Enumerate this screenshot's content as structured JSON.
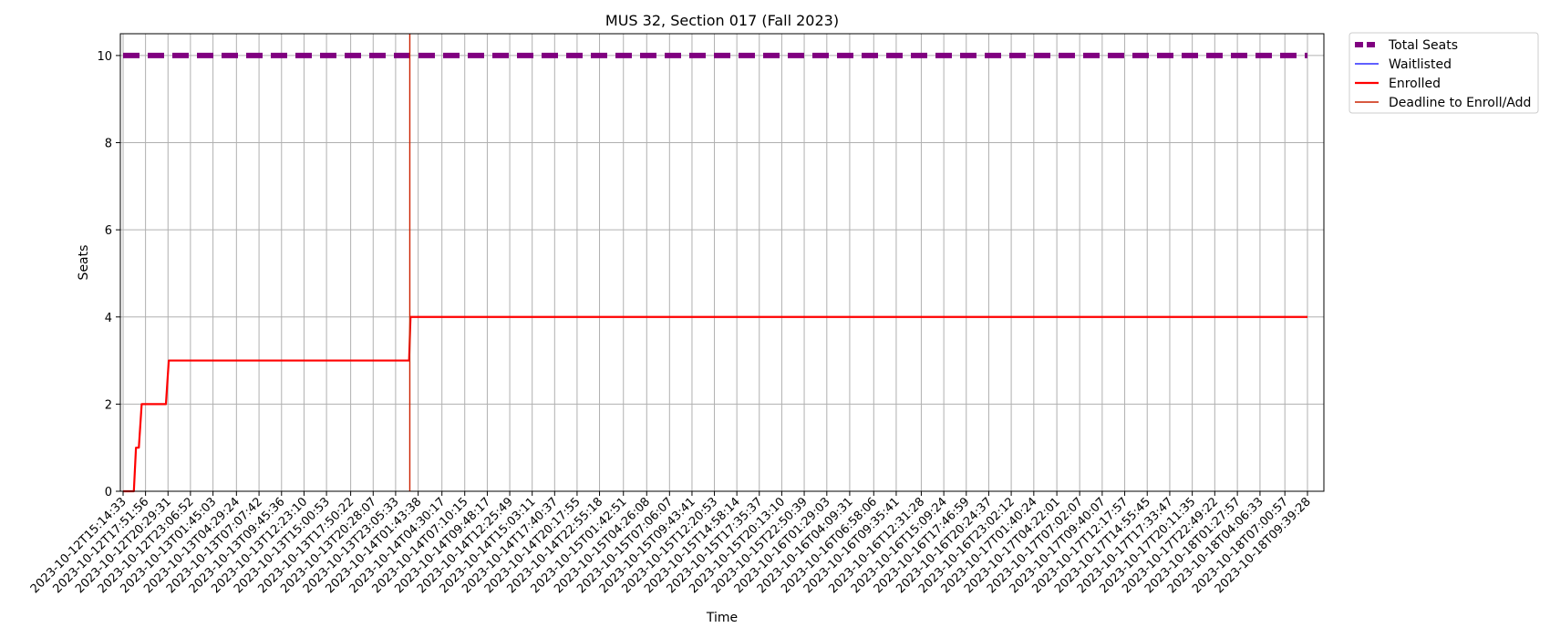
{
  "chart_data": {
    "type": "line",
    "title": "MUS 32, Section 017 (Fall 2023)",
    "xlabel": "Time",
    "ylabel": "Seats",
    "ylim": [
      0,
      10.5
    ],
    "yticks": [
      0,
      2,
      4,
      6,
      8,
      10
    ],
    "grid": true,
    "legend_position": "outside-top-right",
    "x_categories": [
      "2023-10-12T15:14:33",
      "2023-10-12T17:51:56",
      "2023-10-12T20:29:31",
      "2023-10-12T23:06:52",
      "2023-10-13T01:45:03",
      "2023-10-13T04:29:24",
      "2023-10-13T07:07:42",
      "2023-10-13T09:45:36",
      "2023-10-13T12:23:10",
      "2023-10-13T15:00:53",
      "2023-10-13T17:50:22",
      "2023-10-13T20:28:07",
      "2023-10-13T23:05:33",
      "2023-10-14T01:43:38",
      "2023-10-14T04:30:17",
      "2023-10-14T07:10:15",
      "2023-10-14T09:48:17",
      "2023-10-14T12:25:49",
      "2023-10-14T15:03:11",
      "2023-10-14T17:40:37",
      "2023-10-14T20:17:55",
      "2023-10-14T22:55:18",
      "2023-10-15T01:42:51",
      "2023-10-15T04:26:08",
      "2023-10-15T07:06:07",
      "2023-10-15T09:43:41",
      "2023-10-15T12:20:53",
      "2023-10-15T14:58:14",
      "2023-10-15T17:35:37",
      "2023-10-15T20:13:10",
      "2023-10-15T22:50:39",
      "2023-10-16T01:29:03",
      "2023-10-16T04:09:31",
      "2023-10-16T06:58:06",
      "2023-10-16T09:35:41",
      "2023-10-16T12:31:28",
      "2023-10-16T15:09:24",
      "2023-10-16T17:46:59",
      "2023-10-16T20:24:37",
      "2023-10-16T23:02:12",
      "2023-10-17T01:40:24",
      "2023-10-17T04:22:01",
      "2023-10-17T07:02:07",
      "2023-10-17T09:40:07",
      "2023-10-17T12:17:57",
      "2023-10-17T14:55:45",
      "2023-10-17T17:33:47",
      "2023-10-17T20:11:35",
      "2023-10-17T22:49:22",
      "2023-10-18T01:27:57",
      "2023-10-18T04:06:33",
      "2023-10-18T07:00:57",
      "2023-10-18T09:39:28"
    ],
    "series": [
      {
        "name": "Total Seats",
        "color": "#800080",
        "style": "dashed",
        "points": [
          [
            "2023-10-12T15:14:33",
            10
          ],
          [
            "2023-10-18T09:39:28",
            10
          ]
        ]
      },
      {
        "name": "Waitlisted",
        "color": "#0000ff",
        "style": "solid",
        "points": [
          [
            "2023-10-12T15:14:33",
            0
          ],
          [
            "2023-10-12T16:30:00",
            0
          ]
        ]
      },
      {
        "name": "Enrolled",
        "color": "#ff0000",
        "style": "solid",
        "points": [
          [
            "2023-10-12T15:14:33",
            0
          ],
          [
            "2023-10-12T16:30:00",
            0
          ],
          [
            "2023-10-12T16:45:00",
            1
          ],
          [
            "2023-10-12T17:05:00",
            1
          ],
          [
            "2023-10-12T17:25:00",
            2
          ],
          [
            "2023-10-12T20:15:00",
            2
          ],
          [
            "2023-10-12T20:35:00",
            3
          ],
          [
            "2023-10-14T00:40:00",
            3
          ],
          [
            "2023-10-14T00:50:00",
            4
          ],
          [
            "2023-10-18T09:39:28",
            4
          ]
        ]
      }
    ],
    "deadline": {
      "name": "Deadline to Enroll/Add",
      "color": "#cc2200",
      "x": "2023-10-14T00:45:00"
    },
    "legend": [
      "Total Seats",
      "Waitlisted",
      "Enrolled",
      "Deadline to Enroll/Add"
    ]
  }
}
